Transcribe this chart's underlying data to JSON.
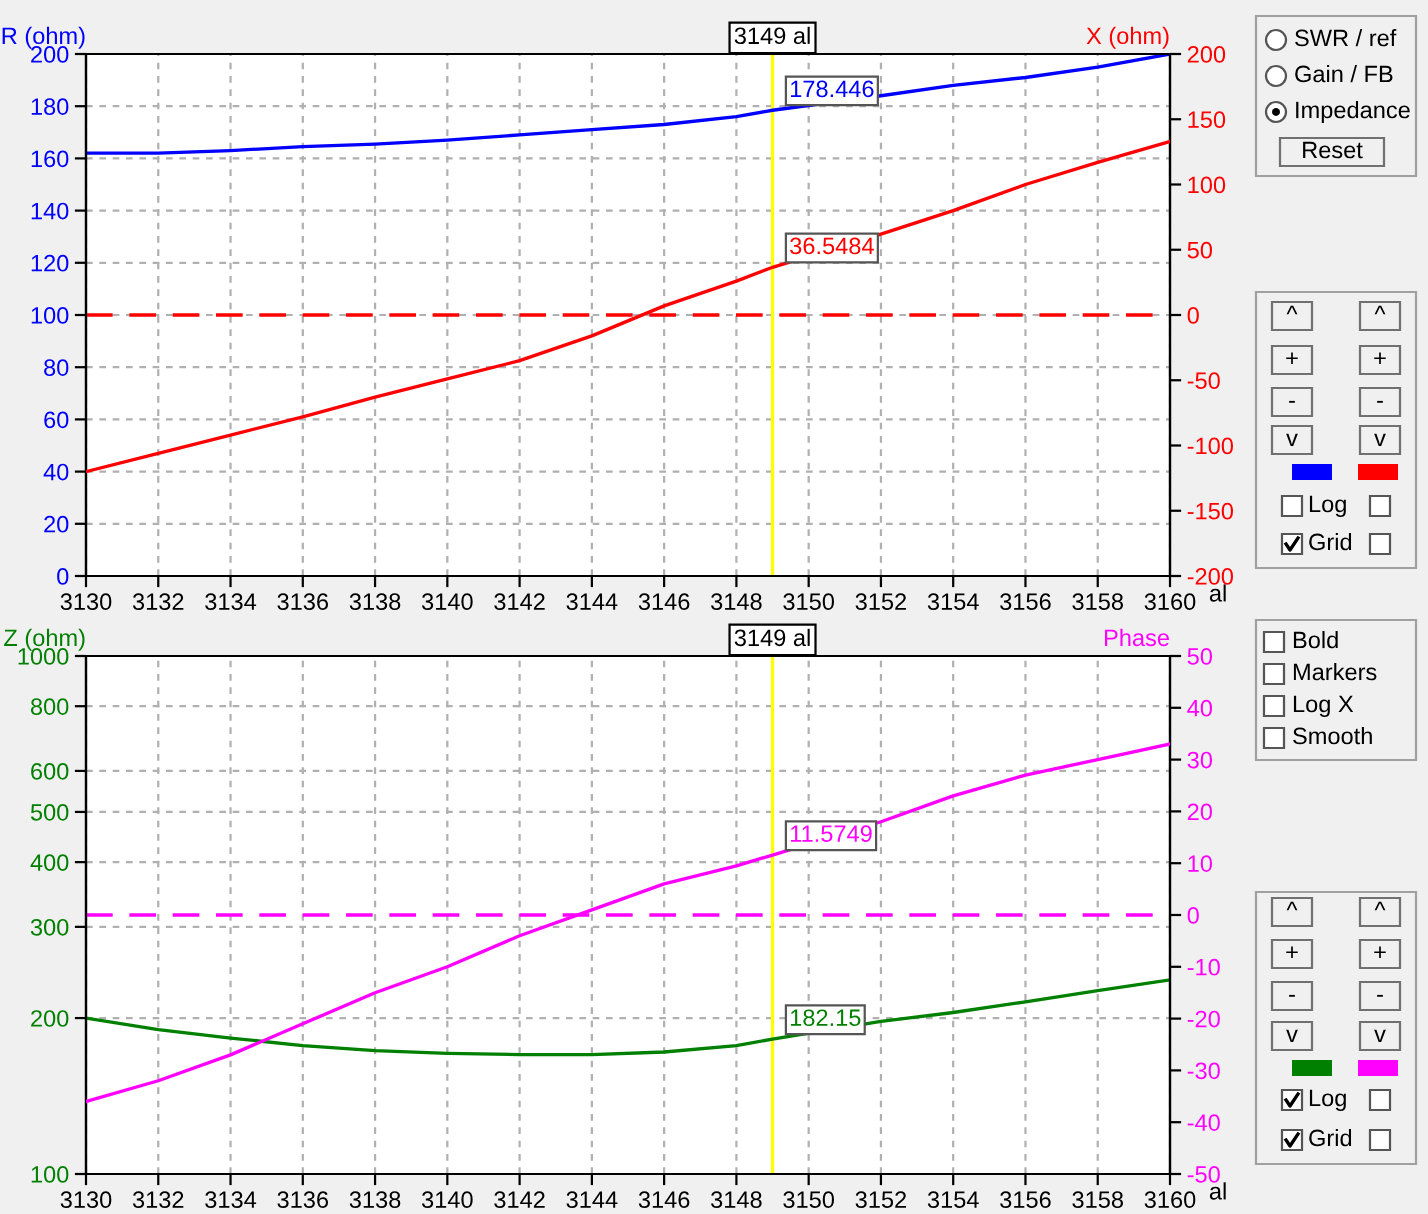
{
  "chart_data": [
    {
      "type": "line",
      "xlabel": "al",
      "ylabel": "R (ohm)",
      "y2label": "X (ohm)",
      "xlim": [
        3130,
        3160
      ],
      "xticks": [
        3130,
        3132,
        3134,
        3136,
        3138,
        3140,
        3142,
        3144,
        3146,
        3148,
        3150,
        3152,
        3154,
        3156,
        3158,
        3160
      ],
      "ylim": [
        0,
        200
      ],
      "yticks": [
        0,
        20,
        40,
        60,
        80,
        100,
        120,
        140,
        160,
        180,
        200
      ],
      "y2lim": [
        -200,
        200
      ],
      "y2ticks": [
        -200,
        -150,
        -100,
        -50,
        0,
        50,
        100,
        150,
        200
      ],
      "grid": true,
      "legend": false,
      "series": [
        {
          "color": "#0000ff",
          "x": [
            3130,
            3132,
            3134,
            3136,
            3138,
            3140,
            3142,
            3144,
            3146,
            3148,
            3149,
            3152,
            3154,
            3156,
            3158,
            3160
          ],
          "values": [
            162,
            162,
            163,
            164.5,
            165.5,
            167,
            169,
            171,
            173,
            176,
            178.446,
            184,
            188,
            191,
            195,
            200
          ],
          "value_labels": [
            null,
            null,
            null,
            null,
            null,
            null,
            null,
            null,
            null,
            null,
            "178.446",
            null,
            null,
            null,
            null,
            null
          ]
        },
        {
          "color": "#ff0000",
          "axis": "y2",
          "x": [
            3130,
            3132,
            3134,
            3136,
            3138,
            3140,
            3142,
            3144,
            3146,
            3148,
            3149,
            3152,
            3154,
            3156,
            3158,
            3160
          ],
          "values": [
            -120,
            -106,
            -92,
            -78,
            -63,
            -49,
            -35,
            -16,
            7,
            26,
            36.5484,
            62,
            80,
            100,
            117,
            133
          ],
          "value_labels": [
            null,
            null,
            null,
            null,
            null,
            null,
            null,
            null,
            null,
            null,
            "36.5484",
            null,
            null,
            null,
            null,
            null
          ]
        }
      ],
      "ref_lines": [
        {
          "axis": "y2",
          "value": 0,
          "color": "#ff0000",
          "line_style": "dashed"
        },
        {
          "axis": "x",
          "value": 3149,
          "label": "3149 al",
          "color": "#ffff00"
        }
      ]
    },
    {
      "type": "line",
      "xlabel": "al",
      "ylabel": "Z (ohm)",
      "y2label": "Phase",
      "log": "y",
      "xlim": [
        3130,
        3160
      ],
      "xticks": [
        3130,
        3132,
        3134,
        3136,
        3138,
        3140,
        3142,
        3144,
        3146,
        3148,
        3150,
        3152,
        3154,
        3156,
        3158,
        3160
      ],
      "ylim": [
        100,
        1000
      ],
      "yticks": [
        100,
        200,
        300,
        400,
        500,
        600,
        800,
        1000
      ],
      "y2lim": [
        -50,
        50
      ],
      "y2ticks": [
        -50,
        -40,
        -30,
        -20,
        -10,
        0,
        10,
        20,
        30,
        40,
        50
      ],
      "grid": true,
      "legend": false,
      "series": [
        {
          "color": "#008000",
          "x": [
            3130,
            3132,
            3134,
            3136,
            3138,
            3140,
            3142,
            3144,
            3146,
            3148,
            3149,
            3152,
            3154,
            3156,
            3158,
            3160
          ],
          "values": [
            200,
            190,
            183,
            177,
            173,
            171,
            170,
            170,
            172,
            177,
            182.15,
            197,
            205,
            215,
            226,
            237
          ],
          "value_labels": [
            null,
            null,
            null,
            null,
            null,
            null,
            null,
            null,
            null,
            null,
            "182.15",
            null,
            null,
            null,
            null,
            null
          ]
        },
        {
          "color": "#ff00ff",
          "axis": "y2",
          "x": [
            3130,
            3132,
            3134,
            3136,
            3138,
            3140,
            3142,
            3144,
            3146,
            3148,
            3149,
            3152,
            3154,
            3156,
            3158,
            3160
          ],
          "values": [
            -36,
            -32,
            -27,
            -21,
            -15,
            -10,
            -4,
            1,
            6,
            9.5,
            11.5749,
            18,
            23,
            27,
            30,
            33
          ],
          "value_labels": [
            null,
            null,
            null,
            null,
            null,
            null,
            null,
            null,
            null,
            null,
            "11.5749",
            null,
            null,
            null,
            null,
            null
          ]
        }
      ],
      "ref_lines": [
        {
          "axis": "y2",
          "value": 0,
          "color": "#ff00ff",
          "line_style": "dashed"
        },
        {
          "axis": "x",
          "value": 3149,
          "label": "3149 al",
          "color": "#ffff00"
        }
      ]
    },
    {
      "type": "other",
      "annotations": [
        "SWR / ref",
        "Gain / FB",
        "Impedance",
        "Reset",
        "^",
        "^",
        "+",
        "+",
        "-",
        "-",
        "v",
        "v",
        "Log",
        "Grid",
        "Bold",
        "Markers",
        "Log X",
        "Smooth",
        "^",
        "^",
        "+",
        "+",
        "-",
        "-",
        "v",
        "v",
        "Log",
        "Grid"
      ]
    }
  ]
}
